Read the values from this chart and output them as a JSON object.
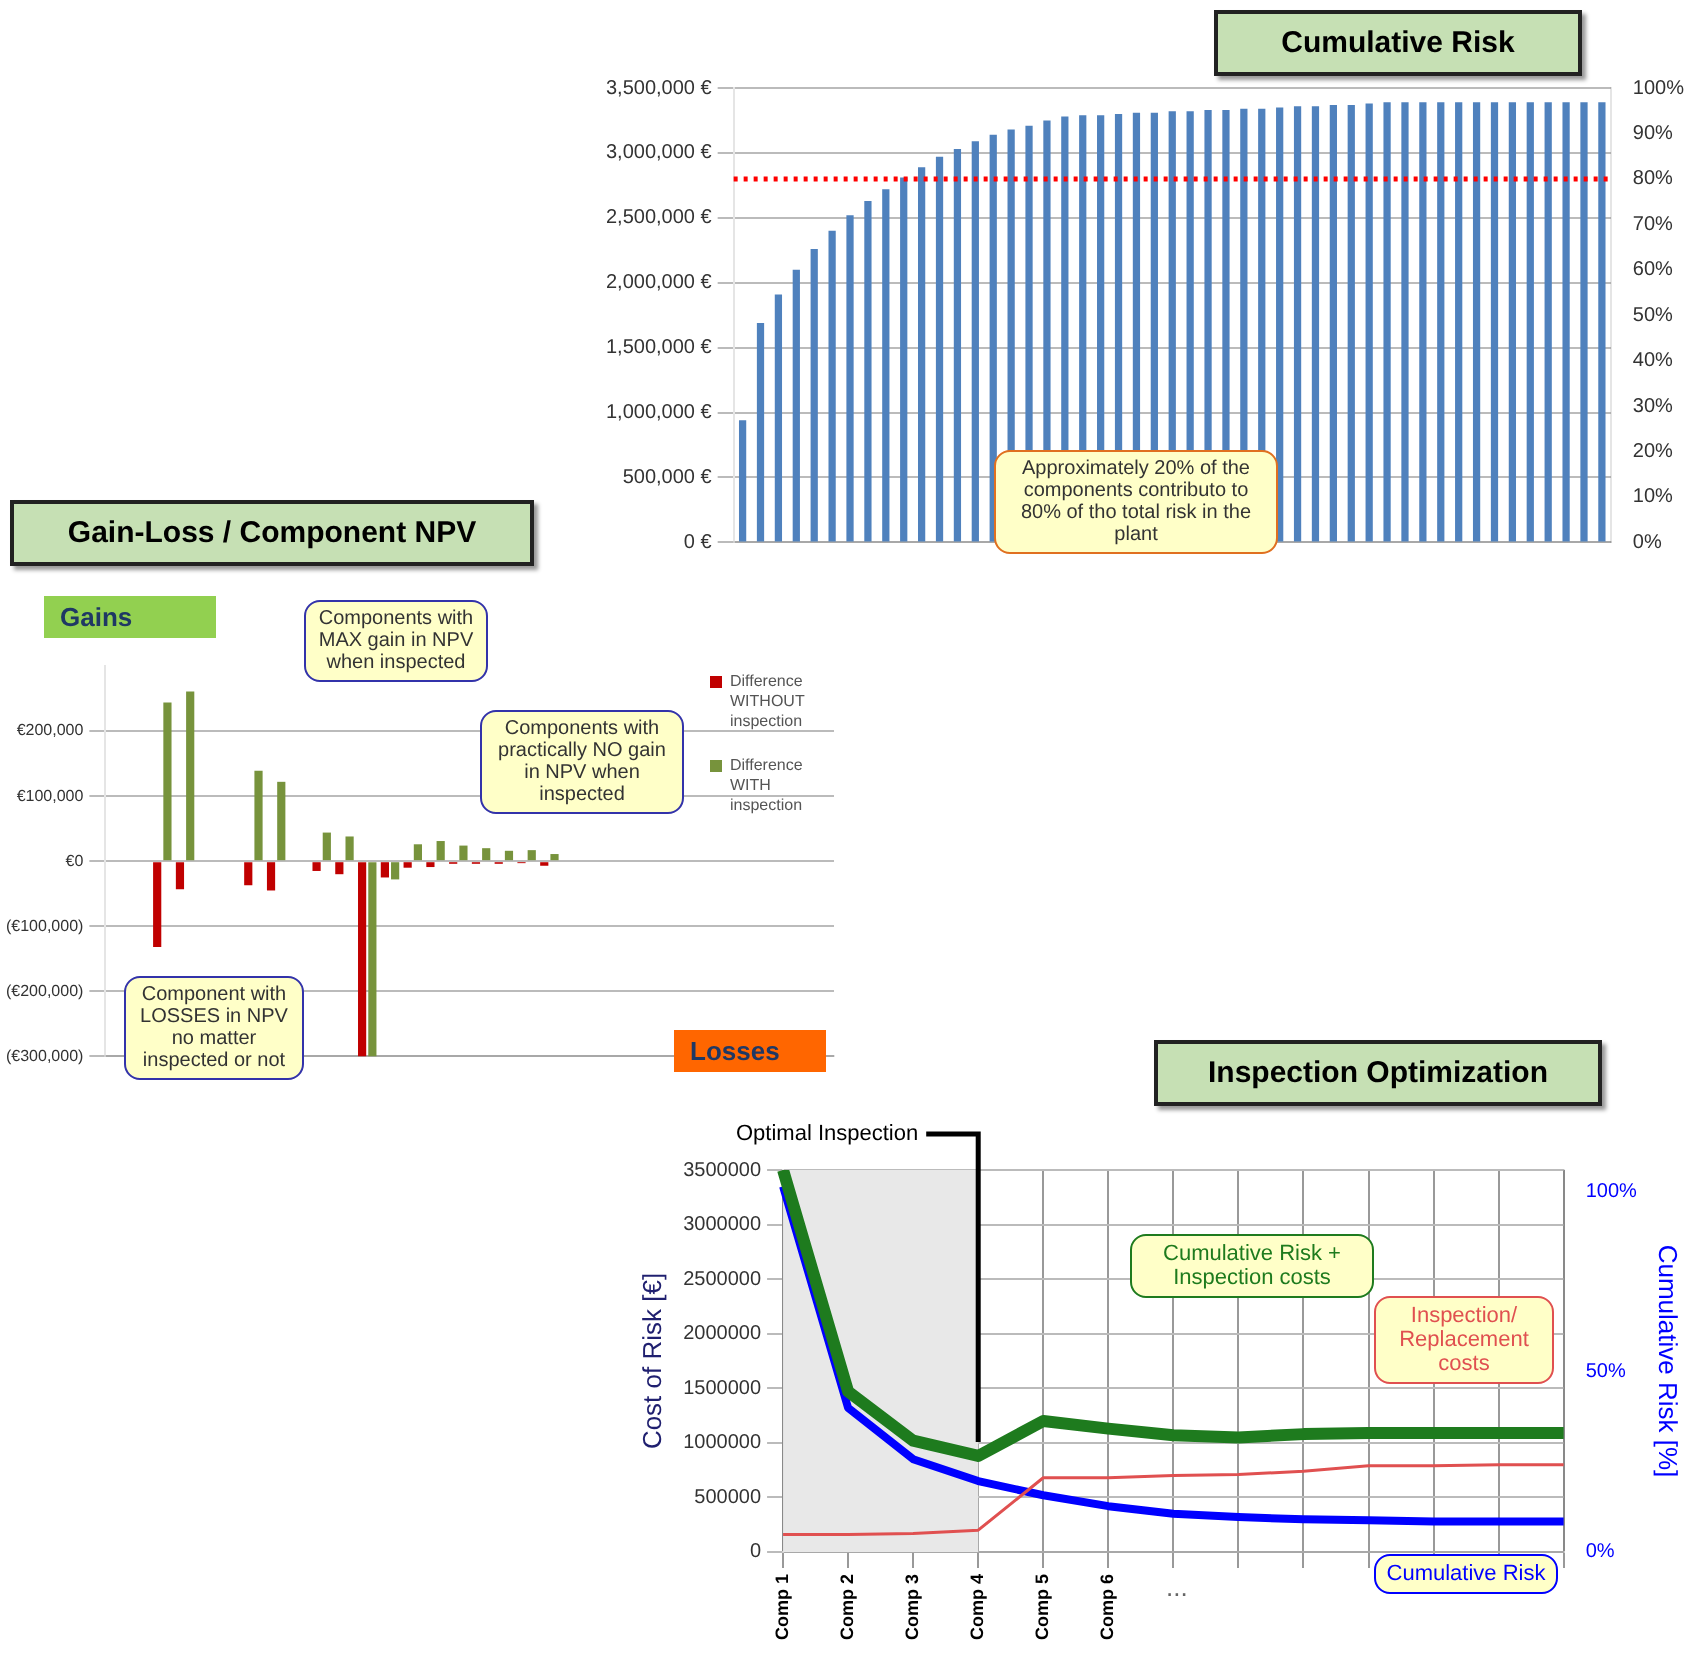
{
  "chart_data": [
    {
      "type": "bar",
      "title": "Cumulative Risk",
      "categories": [
        null,
        null,
        null,
        null,
        null,
        null,
        null,
        null,
        null,
        null,
        null,
        null,
        null,
        null,
        null,
        null,
        null,
        null,
        null,
        null,
        null,
        null,
        null,
        null,
        null,
        null,
        null,
        null,
        null,
        null,
        null,
        null,
        null,
        null,
        null,
        null,
        null,
        null,
        null,
        null,
        null,
        null,
        null,
        null,
        null,
        null,
        null,
        null,
        null
      ],
      "series": [
        {
          "color": "#4f81bd",
          "values": [
            940000,
            1690000,
            1910000,
            2100000,
            2260000,
            2400000,
            2520000,
            2630000,
            2720000,
            2810000,
            2890000,
            2970000,
            3030000,
            3090000,
            3140000,
            3180000,
            3210000,
            3250000,
            3280000,
            3290000,
            3290000,
            3300000,
            3310000,
            3310000,
            3320000,
            3320000,
            3330000,
            3330000,
            3340000,
            3340000,
            3350000,
            3360000,
            3360000,
            3370000,
            3370000,
            3380000,
            3390000,
            3390000,
            3390000,
            3390000,
            3390000,
            3390000,
            3390000,
            3390000,
            3390000,
            3390000,
            3390000,
            3390000,
            3390000
          ]
        }
      ],
      "ylim": [
        0,
        3500000
      ],
      "yticks": [
        {
          "value": 0,
          "label": "0 €"
        },
        {
          "value": 500000,
          "label": "500,000 €"
        },
        {
          "value": 1000000,
          "label": "1,000,000 €"
        },
        {
          "value": 1500000,
          "label": "1,500,000 €"
        },
        {
          "value": 2000000,
          "label": "2,000,000 €"
        },
        {
          "value": 2500000,
          "label": "2,500,000 €"
        },
        {
          "value": 3000000,
          "label": "3,000,000 €"
        },
        {
          "value": 3500000,
          "label": "3,500,000 €"
        }
      ],
      "y2lim": [
        0,
        100
      ],
      "y2ticks": [
        {
          "value": 0,
          "label": "0%"
        },
        {
          "value": 10,
          "label": "10%"
        },
        {
          "value": 20,
          "label": "20%"
        },
        {
          "value": 30,
          "label": "30%"
        },
        {
          "value": 40,
          "label": "40%"
        },
        {
          "value": 50,
          "label": "50%"
        },
        {
          "value": 60,
          "label": "60%"
        },
        {
          "value": 70,
          "label": "70%"
        },
        {
          "value": 80,
          "label": "80%"
        },
        {
          "value": 90,
          "label": "90%"
        },
        {
          "value": 100,
          "label": "100%"
        }
      ],
      "ref_lines": [
        {
          "axis": "y2",
          "value": 80,
          "color": "#ff0000",
          "line_style": "dotted"
        }
      ],
      "annotations": [
        "Approximately 20% of the components contributo to 80% of tho total risk in the plant"
      ],
      "grid": "y",
      "legend": false
    },
    {
      "type": "bar",
      "title": "Gain-Loss / Component NPV",
      "categories": [
        null,
        null,
        null,
        null,
        null,
        null,
        null,
        null,
        null,
        null,
        null,
        null,
        null,
        null,
        null,
        null,
        null,
        null,
        null,
        null,
        null,
        null,
        null,
        null,
        null,
        null,
        null,
        null,
        null,
        null,
        null,
        null
      ],
      "series": [
        {
          "name": "Difference WITHOUT inspection",
          "color": "#c00000",
          "values": [
            0,
            0,
            -132000,
            -43000,
            0,
            0,
            -37000,
            -45000,
            0,
            -15000,
            -20000,
            -300000,
            -25000,
            -10000,
            -9000,
            -4000,
            -4000,
            -4000,
            -3000,
            -7000,
            0,
            0,
            0,
            0,
            0,
            0,
            0,
            0,
            0,
            0,
            0,
            0
          ]
        },
        {
          "name": "Difference WITH inspection",
          "color": "#77933c",
          "values": [
            0,
            0,
            244000,
            261000,
            0,
            0,
            139000,
            122000,
            0,
            44000,
            38000,
            -300000,
            -28000,
            26000,
            31000,
            24000,
            20000,
            16000,
            17000,
            11000,
            0,
            0,
            0,
            0,
            0,
            0,
            0,
            0,
            0,
            0,
            0,
            0
          ]
        }
      ],
      "ylim": [
        -300000,
        300000
      ],
      "yticks": [
        {
          "value": -300000,
          "label": "(€300,000)"
        },
        {
          "value": -200000,
          "label": "(€200,000)"
        },
        {
          "value": -100000,
          "label": "(€100,000)"
        },
        {
          "value": 0,
          "label": "€0"
        },
        {
          "value": 100000,
          "label": "€100,000"
        },
        {
          "value": 200000,
          "label": "€200,000"
        }
      ],
      "annotations": [
        "Gains",
        "Losses",
        "Components with MAX gain in NPV when inspected",
        "Components with practically NO gain in NPV when inspected",
        "Component with LOSSES in NPV no matter inspected or not"
      ],
      "grid": "y",
      "legend": "top right"
    },
    {
      "type": "line",
      "title": "Inspection Optimization",
      "categories": [
        "Comp 1",
        "Comp 2",
        "Comp 3",
        "Comp 4",
        "Comp 5",
        "Comp 6",
        null,
        null,
        null,
        null,
        null,
        null,
        null
      ],
      "series": [
        {
          "name": "Cumulative Risk + Inspection costs",
          "color": "#1e7b1e",
          "values": [
            3500000,
            1470000,
            1020000,
            880000,
            1200000,
            1130000,
            1070000,
            1050000,
            1080000,
            1090000,
            1090000,
            1090000,
            1090000
          ]
        },
        {
          "name": "Inspection/ Replacement costs",
          "color": "#e05050",
          "values": [
            160000,
            160000,
            170000,
            200000,
            680000,
            680000,
            700000,
            710000,
            740000,
            790000,
            790000,
            800000,
            800000
          ]
        },
        {
          "name": "Cumulative Risk",
          "color": "#0000ff",
          "values": [
            3350000,
            1320000,
            850000,
            650000,
            520000,
            420000,
            350000,
            320000,
            300000,
            290000,
            280000,
            280000,
            280000
          ]
        }
      ],
      "ylim": [
        0,
        3500000
      ],
      "yticks": [
        0,
        500000,
        1000000,
        1500000,
        2000000,
        2500000,
        3000000,
        3500000
      ],
      "y2lim": [
        0,
        106
      ],
      "y2ticks": [
        {
          "value": 0,
          "label": "0%"
        },
        {
          "value": 50,
          "label": "50%"
        },
        {
          "value": 100,
          "label": "100%"
        }
      ],
      "ylabel": "Cost of Risk [€]",
      "y2label": "Cumulative Risk [%]",
      "ref_lines": [
        {
          "axis": "x",
          "value": "Comp 4",
          "label": "Optimal Inspection",
          "color": "#000000"
        }
      ],
      "bands": [
        {
          "axis": "x",
          "from": "Comp 1",
          "to": "Comp 4",
          "color": "#e8e8e8"
        }
      ],
      "annotations": [
        "..."
      ],
      "grid": true,
      "legend": false,
      "marker": "none"
    }
  ]
}
